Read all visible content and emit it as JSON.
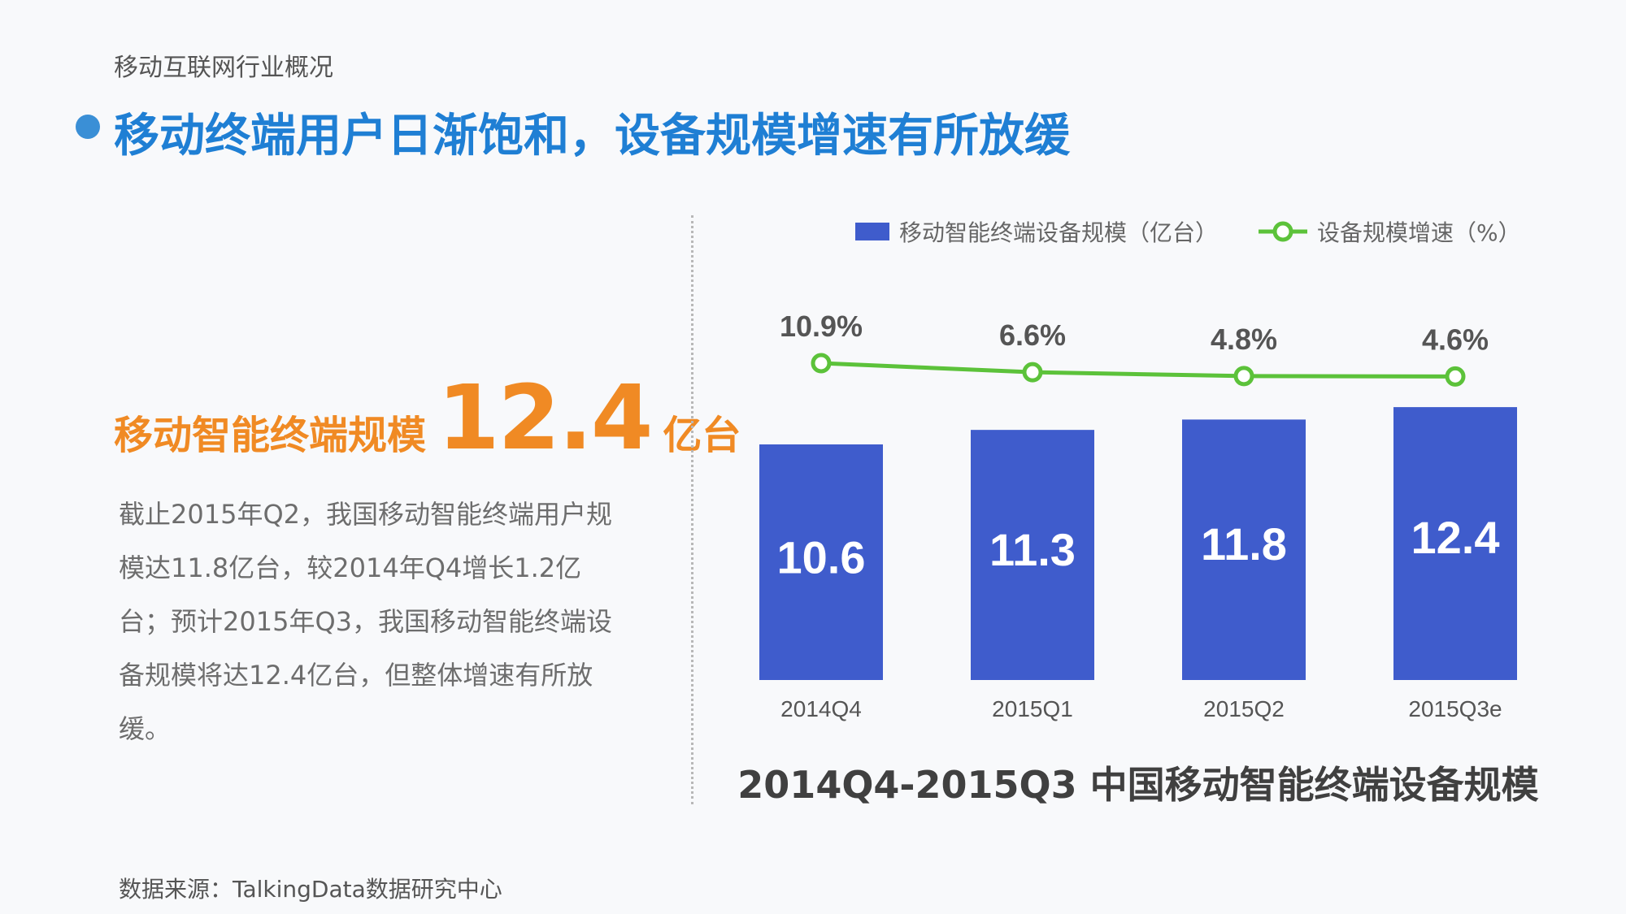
{
  "header": {
    "section_label": "移动互联网行业概况",
    "title": "移动终端用户日渐饱和，设备规模增速有所放缓"
  },
  "highlight": {
    "label": "移动智能终端规模",
    "value": "12.4",
    "unit": "亿台"
  },
  "description": "截止2015年Q2，我国移动智能终端用户规模达11.8亿台，较2014年Q4增长1.2亿台；预计2015年Q3，我国移动智能终端设备规模将达12.4亿台，但整体增速有所放缓。",
  "source": "数据来源：TalkingData数据研究中心",
  "colors": {
    "bar": "#3f5ccc",
    "line": "#5cc23a",
    "accent": "#f08a24",
    "title": "#1f7fd4"
  },
  "chart_data": {
    "type": "bar",
    "title": "2014Q4-2015Q3 中国移动智能终端设备规模",
    "categories": [
      "2014Q4",
      "2015Q1",
      "2015Q2",
      "2015Q3e"
    ],
    "series": [
      {
        "name": "移动智能终端设备规模（亿台）",
        "type": "bar",
        "values": [
          10.6,
          11.3,
          11.8,
          12.4
        ],
        "labels": [
          "10.6",
          "11.3",
          "11.8",
          "12.4"
        ]
      },
      {
        "name": "设备规模增速（%）",
        "type": "line",
        "values": [
          10.9,
          6.6,
          4.8,
          4.6
        ],
        "labels": [
          "10.9%",
          "6.6%",
          "4.8%",
          "4.6%"
        ]
      }
    ],
    "legend_position": "top-right",
    "grid": false
  }
}
